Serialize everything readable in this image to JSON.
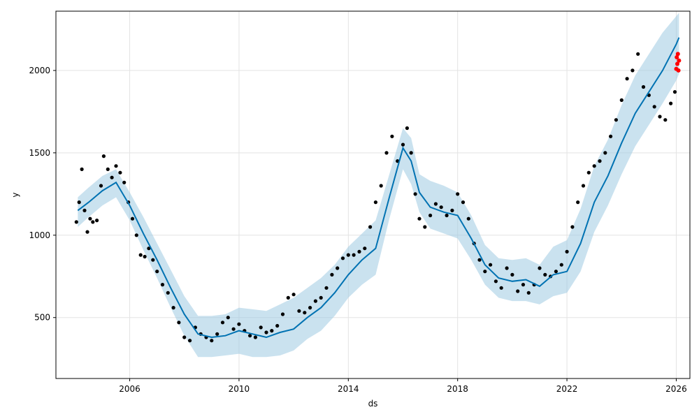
{
  "chart_data": {
    "type": "line",
    "title": "",
    "xlabel": "ds",
    "ylabel": "y",
    "xlim": [
      2003.3,
      2026.5
    ],
    "ylim": [
      130,
      2360
    ],
    "x_ticks": [
      {
        "value": 2006,
        "label": "2006"
      },
      {
        "value": 2010,
        "label": "2010"
      },
      {
        "value": 2014,
        "label": "2014"
      },
      {
        "value": 2018,
        "label": "2018"
      },
      {
        "value": 2022,
        "label": "2022"
      },
      {
        "value": 2026,
        "label": "2026"
      }
    ],
    "y_ticks": [
      {
        "value": 500,
        "label": "500"
      },
      {
        "value": 1000,
        "label": "1000"
      },
      {
        "value": 1500,
        "label": "1500"
      },
      {
        "value": 2000,
        "label": "2000"
      }
    ],
    "grid": true,
    "colors": {
      "forecast_line": "#0072B2",
      "uncertainty_band": "#9ecae1",
      "observed_points": "#000000",
      "recent_points": "#ff0000"
    },
    "series": [
      {
        "kind": "forecast",
        "x": [
          2004.1,
          2004.5,
          2005.0,
          2005.5,
          2006.0,
          2006.5,
          2007.0,
          2007.5,
          2008.0,
          2008.5,
          2009.0,
          2009.5,
          2010.0,
          2010.5,
          2011.0,
          2011.5,
          2012.0,
          2012.5,
          2013.0,
          2013.5,
          2014.0,
          2014.5,
          2015.0,
          2015.5,
          2016.0,
          2016.3,
          2016.6,
          2017.0,
          2017.5,
          2018.0,
          2018.5,
          2019.0,
          2019.5,
          2020.0,
          2020.5,
          2021.0,
          2021.5,
          2022.0,
          2022.5,
          2023.0,
          2023.5,
          2024.0,
          2024.5,
          2025.0,
          2025.5,
          2026.0,
          2026.1
        ],
        "values": [
          1150,
          1200,
          1270,
          1320,
          1180,
          1010,
          850,
          680,
          520,
          400,
          380,
          390,
          420,
          400,
          380,
          410,
          430,
          500,
          560,
          650,
          760,
          850,
          920,
          1230,
          1530,
          1450,
          1260,
          1170,
          1140,
          1120,
          980,
          820,
          740,
          720,
          730,
          690,
          760,
          780,
          950,
          1200,
          1360,
          1560,
          1740,
          1870,
          2000,
          2160,
          2200
        ],
        "upper": [
          1230,
          1290,
          1360,
          1400,
          1260,
          1110,
          950,
          790,
          630,
          510,
          510,
          520,
          560,
          550,
          540,
          580,
          620,
          680,
          740,
          820,
          930,
          1010,
          1090,
          1370,
          1650,
          1590,
          1370,
          1330,
          1300,
          1260,
          1120,
          940,
          860,
          850,
          860,
          820,
          930,
          970,
          1160,
          1420,
          1580,
          1790,
          1970,
          2100,
          2230,
          2330,
          2350
        ],
        "lower": [
          1050,
          1110,
          1180,
          1230,
          1090,
          910,
          740,
          560,
          390,
          260,
          260,
          270,
          280,
          260,
          260,
          270,
          300,
          370,
          420,
          510,
          620,
          700,
          760,
          1100,
          1400,
          1310,
          1140,
          1040,
          1010,
          980,
          850,
          700,
          620,
          600,
          600,
          580,
          630,
          650,
          780,
          1020,
          1180,
          1370,
          1540,
          1670,
          1800,
          1940,
          1980
        ]
      },
      {
        "kind": "observed",
        "x": [
          2004.05,
          2004.15,
          2004.25,
          2004.35,
          2004.45,
          2004.55,
          2004.65,
          2004.8,
          2004.95,
          2005.05,
          2005.2,
          2005.35,
          2005.5,
          2005.65,
          2005.8,
          2005.95,
          2006.1,
          2006.25,
          2006.4,
          2006.55,
          2006.7,
          2006.85,
          2007.0,
          2007.2,
          2007.4,
          2007.6,
          2007.8,
          2008.0,
          2008.2,
          2008.4,
          2008.6,
          2008.8,
          2009.0,
          2009.2,
          2009.4,
          2009.6,
          2009.8,
          2010.0,
          2010.2,
          2010.4,
          2010.6,
          2010.8,
          2011.0,
          2011.2,
          2011.4,
          2011.6,
          2011.8,
          2012.0,
          2012.2,
          2012.4,
          2012.6,
          2012.8,
          2013.0,
          2013.2,
          2013.4,
          2013.6,
          2013.8,
          2014.0,
          2014.2,
          2014.4,
          2014.6,
          2014.8,
          2015.0,
          2015.2,
          2015.4,
          2015.6,
          2015.8,
          2016.0,
          2016.15,
          2016.3,
          2016.45,
          2016.6,
          2016.8,
          2017.0,
          2017.2,
          2017.4,
          2017.6,
          2017.8,
          2018.0,
          2018.2,
          2018.4,
          2018.6,
          2018.8,
          2019.0,
          2019.2,
          2019.4,
          2019.6,
          2019.8,
          2020.0,
          2020.2,
          2020.4,
          2020.6,
          2020.8,
          2021.0,
          2021.2,
          2021.4,
          2021.6,
          2021.8,
          2022.0,
          2022.2,
          2022.4,
          2022.6,
          2022.8,
          2023.0,
          2023.2,
          2023.4,
          2023.6,
          2023.8,
          2024.0,
          2024.2,
          2024.4,
          2024.6,
          2024.8,
          2025.0,
          2025.2,
          2025.4,
          2025.6,
          2025.8,
          2025.95
        ],
        "values": [
          1080,
          1200,
          1400,
          1150,
          1020,
          1100,
          1080,
          1090,
          1300,
          1480,
          1400,
          1350,
          1420,
          1380,
          1320,
          1200,
          1100,
          1000,
          880,
          870,
          920,
          850,
          780,
          700,
          650,
          560,
          470,
          380,
          360,
          440,
          400,
          380,
          360,
          400,
          470,
          500,
          430,
          460,
          420,
          390,
          380,
          440,
          410,
          420,
          450,
          520,
          620,
          640,
          540,
          530,
          560,
          600,
          620,
          680,
          760,
          800,
          860,
          880,
          880,
          900,
          920,
          1050,
          1200,
          1300,
          1500,
          1600,
          1450,
          1550,
          1650,
          1500,
          1250,
          1100,
          1050,
          1120,
          1190,
          1170,
          1120,
          1150,
          1250,
          1200,
          1100,
          950,
          850,
          780,
          820,
          720,
          680,
          800,
          760,
          660,
          700,
          650,
          700,
          800,
          760,
          750,
          780,
          820,
          900,
          1050,
          1200,
          1300,
          1380,
          1420,
          1450,
          1500,
          1600,
          1700,
          1820,
          1950,
          2000,
          2100,
          1900,
          1850,
          1780,
          1720,
          1700,
          1800,
          1870
        ]
      },
      {
        "kind": "recent",
        "x": [
          2026.0,
          2026.02,
          2026.04,
          2026.06,
          2026.08,
          2026.1
        ],
        "values": [
          2010,
          2080,
          2040,
          2100,
          2000,
          2060
        ]
      }
    ]
  }
}
